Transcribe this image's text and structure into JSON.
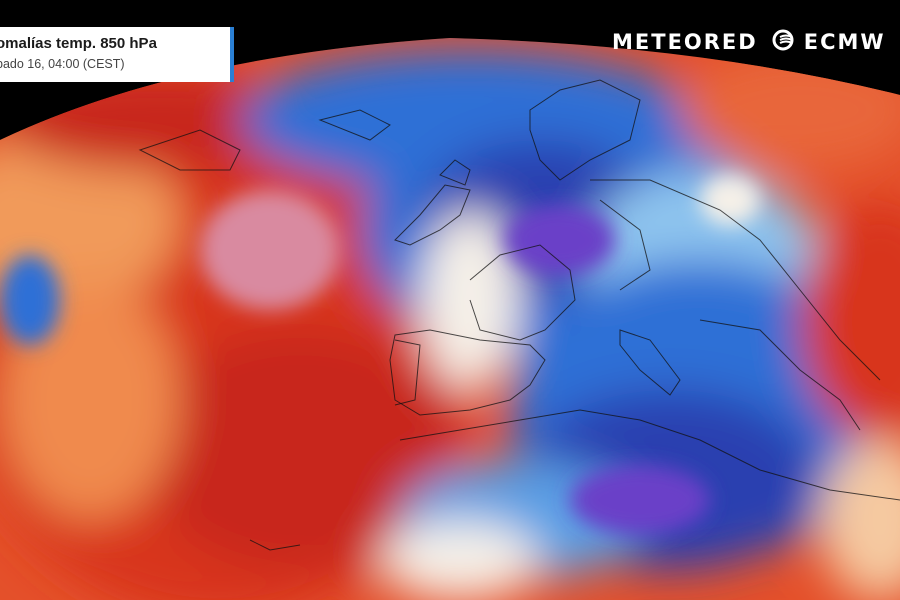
{
  "map": {
    "title": "omalías temp. 850 hPa",
    "timestamp": "bado 16, 04:00 (CEST)"
  },
  "branding": {
    "meteored": "METEORED",
    "ecmwf": "ECMW"
  },
  "colors": {
    "background": "#000000",
    "warm_strong": "#c8271c",
    "warm": "#e4502a",
    "warm_light": "#f19a5a",
    "extreme_warm": "#d98aa0",
    "neutral": "#f5f0e8",
    "cool_light": "#8ec4ee",
    "cool": "#2f6fd6",
    "cool_strong": "#2a3fb0",
    "extreme_cool": "#6a3fc8",
    "info_accent": "#2a7fd4"
  },
  "icons": [
    "ecmwf-logo-icon"
  ]
}
